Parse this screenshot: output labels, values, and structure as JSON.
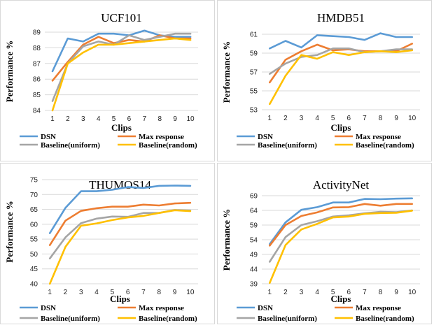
{
  "chart_data": [
    {
      "type": "line",
      "title": "UCF101",
      "xlabel": "Clips",
      "ylabel": "Performance %",
      "x": [
        1,
        2,
        3,
        4,
        5,
        6,
        7,
        8,
        9,
        10
      ],
      "ylim": [
        84,
        89
      ],
      "yticks": [
        84,
        85,
        86,
        87,
        88,
        89
      ],
      "grid": true,
      "legend_position": "bottom",
      "series": [
        {
          "name": "DSN",
          "color": "#5b9bd5",
          "values": [
            86.5,
            88.6,
            88.4,
            88.9,
            88.9,
            88.8,
            89.1,
            88.8,
            88.7,
            88.7
          ]
        },
        {
          "name": "Max response",
          "color": "#ed7d31",
          "values": [
            85.9,
            87.1,
            88.2,
            88.7,
            88.3,
            88.5,
            88.4,
            88.8,
            88.6,
            88.6
          ]
        },
        {
          "name": "Baseline(uniform)",
          "color": "#a5a5a5",
          "values": [
            84.6,
            87.0,
            88.1,
            88.4,
            88.2,
            88.8,
            88.5,
            88.7,
            88.9,
            88.9
          ]
        },
        {
          "name": "Baseline(random)",
          "color": "#ffc000",
          "values": [
            84.0,
            87.0,
            87.7,
            88.2,
            88.2,
            88.3,
            88.4,
            88.5,
            88.6,
            88.5
          ]
        }
      ]
    },
    {
      "type": "line",
      "title": "HMDB51",
      "xlabel": "Clips",
      "ylabel": "Performance %",
      "x": [
        1,
        2,
        3,
        4,
        5,
        6,
        7,
        8,
        9,
        10
      ],
      "ylim": [
        53,
        61
      ],
      "yticks": [
        53,
        55,
        57,
        59,
        61
      ],
      "grid": true,
      "legend_position": "bottom",
      "series": [
        {
          "name": "DSN",
          "color": "#5b9bd5",
          "values": [
            59.5,
            60.3,
            59.6,
            60.9,
            60.8,
            60.7,
            60.4,
            61.1,
            60.7,
            60.7
          ]
        },
        {
          "name": "Max response",
          "color": "#ed7d31",
          "values": [
            55.9,
            58.3,
            59.2,
            59.9,
            59.3,
            59.4,
            59.2,
            59.2,
            59.2,
            60.0
          ]
        },
        {
          "name": "Baseline(uniform)",
          "color": "#a5a5a5",
          "values": [
            56.8,
            57.9,
            58.6,
            58.8,
            59.5,
            59.5,
            59.1,
            59.2,
            59.4,
            59.4
          ]
        },
        {
          "name": "Baseline(random)",
          "color": "#ffc000",
          "values": [
            53.6,
            56.6,
            58.8,
            58.4,
            59.1,
            58.8,
            59.1,
            59.2,
            59.1,
            59.3
          ]
        }
      ]
    },
    {
      "type": "line",
      "title": "THUMOS14",
      "xlabel": "Clips",
      "ylabel": "Performance %",
      "x": [
        1,
        2,
        3,
        4,
        5,
        6,
        7,
        8,
        9,
        10
      ],
      "ylim": [
        40,
        75
      ],
      "yticks": [
        40,
        45,
        50,
        55,
        60,
        65,
        70,
        75
      ],
      "grid": true,
      "legend_position": "bottom",
      "series": [
        {
          "name": "DSN",
          "color": "#5b9bd5",
          "values": [
            57.0,
            65.5,
            71.1,
            71.1,
            71.6,
            72.5,
            72.2,
            72.9,
            73.0,
            72.9
          ]
        },
        {
          "name": "Max response",
          "color": "#ed7d31",
          "values": [
            53.0,
            61.2,
            64.5,
            65.4,
            65.9,
            65.9,
            66.6,
            66.3,
            67.0,
            67.2
          ]
        },
        {
          "name": "Baseline(uniform)",
          "color": "#a5a5a5",
          "values": [
            48.5,
            55.6,
            60.4,
            61.9,
            62.6,
            62.5,
            63.8,
            63.8,
            64.8,
            64.6
          ]
        },
        {
          "name": "Baseline(random)",
          "color": "#ffc000",
          "values": [
            40.0,
            52.4,
            59.5,
            60.3,
            61.4,
            62.3,
            62.8,
            63.8,
            64.7,
            64.4
          ]
        }
      ]
    },
    {
      "type": "line",
      "title": "ActivityNet",
      "xlabel": "Clips",
      "ylabel": "Performance %",
      "x": [
        1,
        2,
        3,
        4,
        5,
        6,
        7,
        8,
        9,
        10
      ],
      "ylim": [
        39,
        69
      ],
      "yticks": [
        39,
        44,
        49,
        54,
        59,
        64,
        69
      ],
      "grid": true,
      "legend_position": "bottom",
      "series": [
        {
          "name": "DSN",
          "color": "#5b9bd5",
          "values": [
            52.5,
            59.9,
            64.2,
            65.1,
            66.7,
            66.7,
            67.9,
            67.8,
            68.0,
            68.1
          ]
        },
        {
          "name": "Max response",
          "color": "#ed7d31",
          "values": [
            52.0,
            59.0,
            62.1,
            63.3,
            65.0,
            65.1,
            66.2,
            65.6,
            66.2,
            66.2
          ]
        },
        {
          "name": "Baseline(uniform)",
          "color": "#a5a5a5",
          "values": [
            46.5,
            54.9,
            59.0,
            60.3,
            61.9,
            62.3,
            63.0,
            63.5,
            63.4,
            64.0
          ]
        },
        {
          "name": "Baseline(random)",
          "color": "#ffc000",
          "values": [
            39.3,
            52.2,
            57.5,
            59.4,
            61.6,
            61.9,
            62.8,
            63.1,
            63.2,
            63.9
          ]
        }
      ]
    }
  ]
}
